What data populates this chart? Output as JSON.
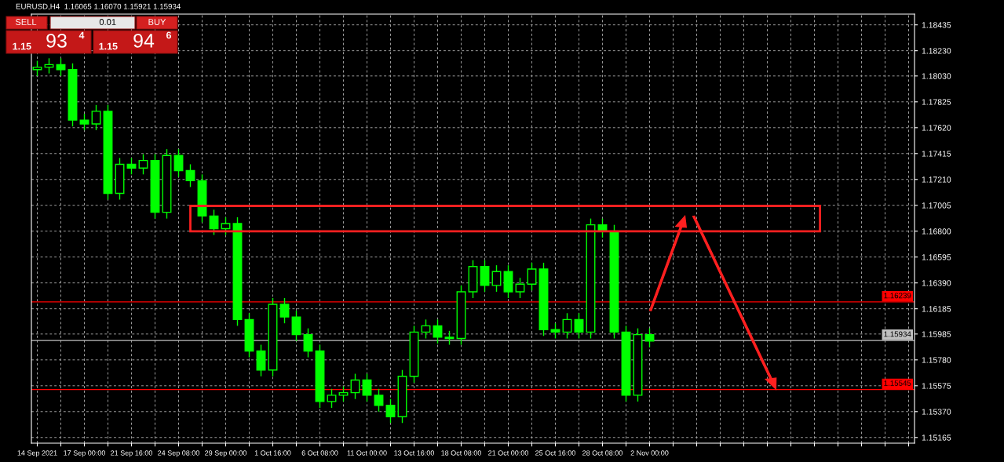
{
  "chart_data": {
    "type": "candlestick",
    "title": "EURUSD,H4  1.16065 1.16070 1.15921 1.15934",
    "color": "#00ff00",
    "categories": [
      "14 Sep 2021",
      null,
      null,
      null,
      "17 Sep 00:00",
      null,
      null,
      null,
      "21 Sep 16:00",
      null,
      null,
      null,
      "24 Sep 08:00",
      null,
      null,
      null,
      "29 Sep 00:00",
      null,
      null,
      null,
      "1 Oct 16:00",
      null,
      null,
      null,
      "6 Oct 08:00",
      null,
      null,
      null,
      "11 Oct 00:00",
      null,
      null,
      null,
      "13 Oct 16:00",
      null,
      null,
      null,
      "18 Oct 08:00",
      null,
      null,
      null,
      "21 Oct 00:00",
      null,
      null,
      null,
      "25 Oct 16:00",
      null,
      null,
      null,
      "28 Oct 08:00",
      null,
      null,
      null,
      "2 Nov 00:00",
      null,
      null,
      null,
      null,
      null,
      null,
      null,
      null,
      null,
      null,
      null,
      null,
      null,
      null,
      null,
      null,
      null,
      null,
      null,
      null,
      null,
      null
    ],
    "ohlc": [
      [
        1.1808,
        1.1815,
        1.1803,
        1.181
      ],
      [
        1.181,
        1.1817,
        1.1805,
        1.1812
      ],
      [
        1.1812,
        1.1817,
        1.1803,
        1.1808
      ],
      [
        1.1808,
        1.1813,
        1.1763,
        1.1768
      ],
      [
        1.1768,
        1.1773,
        1.176,
        1.1765
      ],
      [
        1.1765,
        1.178,
        1.176,
        1.1775
      ],
      [
        1.1775,
        1.178,
        1.1705,
        1.171
      ],
      [
        1.171,
        1.1738,
        1.1705,
        1.1733
      ],
      [
        1.1733,
        1.1738,
        1.1725,
        1.173
      ],
      [
        1.173,
        1.1741,
        1.1725,
        1.1736
      ],
      [
        1.1736,
        1.1741,
        1.169,
        1.1695
      ],
      [
        1.1695,
        1.1745,
        1.169,
        1.174
      ],
      [
        1.174,
        1.1745,
        1.1723,
        1.1728
      ],
      [
        1.1728,
        1.1733,
        1.1715,
        1.172
      ],
      [
        1.172,
        1.1725,
        1.1687,
        1.1692
      ],
      [
        1.1692,
        1.1697,
        1.1677,
        1.1682
      ],
      [
        1.1682,
        1.1691,
        1.1677,
        1.1686
      ],
      [
        1.1686,
        1.1691,
        1.1605,
        1.161
      ],
      [
        1.161,
        1.1615,
        1.158,
        1.1585
      ],
      [
        1.1585,
        1.159,
        1.1565,
        1.157
      ],
      [
        1.157,
        1.1627,
        1.1565,
        1.1622
      ],
      [
        1.1622,
        1.1627,
        1.1607,
        1.1612
      ],
      [
        1.1612,
        1.1617,
        1.1593,
        1.1598
      ],
      [
        1.1598,
        1.1603,
        1.158,
        1.1585
      ],
      [
        1.1585,
        1.159,
        1.154,
        1.1545
      ],
      [
        1.1545,
        1.1555,
        1.154,
        1.155
      ],
      [
        1.155,
        1.1557,
        1.1545,
        1.1552
      ],
      [
        1.1552,
        1.1567,
        1.1547,
        1.1562
      ],
      [
        1.1562,
        1.1567,
        1.1545,
        1.155
      ],
      [
        1.155,
        1.1555,
        1.1537,
        1.1542
      ],
      [
        1.1542,
        1.1547,
        1.1528,
        1.1533
      ],
      [
        1.1533,
        1.157,
        1.1528,
        1.1565
      ],
      [
        1.1565,
        1.1605,
        1.156,
        1.16
      ],
      [
        1.16,
        1.161,
        1.1595,
        1.1605
      ],
      [
        1.1605,
        1.161,
        1.1591,
        1.1596
      ],
      [
        1.1596,
        1.1601,
        1.159,
        1.1595
      ],
      [
        1.1595,
        1.1637,
        1.159,
        1.1632
      ],
      [
        1.1632,
        1.1657,
        1.1627,
        1.1652
      ],
      [
        1.1652,
        1.1657,
        1.1632,
        1.1637
      ],
      [
        1.1637,
        1.1653,
        1.1632,
        1.1648
      ],
      [
        1.1648,
        1.1653,
        1.1627,
        1.1632
      ],
      [
        1.1632,
        1.1643,
        1.1627,
        1.1638
      ],
      [
        1.1638,
        1.1655,
        1.1633,
        1.165
      ],
      [
        1.165,
        1.1655,
        1.1597,
        1.1602
      ],
      [
        1.1602,
        1.1607,
        1.1595,
        1.16
      ],
      [
        1.16,
        1.1615,
        1.1595,
        1.161
      ],
      [
        1.161,
        1.1615,
        1.1595,
        1.16
      ],
      [
        1.16,
        1.169,
        1.1595,
        1.1685
      ],
      [
        1.1685,
        1.169,
        1.1675,
        1.168
      ],
      [
        1.168,
        1.1685,
        1.1595,
        1.16
      ],
      [
        1.16,
        1.1605,
        1.1545,
        1.155
      ],
      [
        1.155,
        1.1603,
        1.1545,
        1.1598
      ],
      [
        1.1598,
        1.1603,
        1.1588,
        1.1593
      ],
      null,
      null,
      null,
      null,
      null,
      null,
      null,
      null,
      null,
      null,
      null,
      null,
      null,
      null,
      null,
      null,
      null,
      null,
      null,
      null,
      null,
      null
    ],
    "ylim": [
      1.1512,
      1.1852
    ],
    "yticks": [
      {
        "value": 1.15165,
        "label": "1.15165"
      },
      {
        "value": 1.1537,
        "label": "1.15370"
      },
      {
        "value": 1.15575,
        "label": "1.15575"
      },
      {
        "value": 1.1578,
        "label": "1.15780"
      },
      {
        "value": 1.15985,
        "label": "1.15985"
      },
      {
        "value": 1.16185,
        "label": "1.16185"
      },
      {
        "value": 1.1639,
        "label": "1.16390"
      },
      {
        "value": 1.16595,
        "label": "1.16595"
      },
      {
        "value": 1.168,
        "label": "1.16800"
      },
      {
        "value": 1.17005,
        "label": "1.17005"
      },
      {
        "value": 1.1721,
        "label": "1.17210"
      },
      {
        "value": 1.17415,
        "label": "1.17415"
      },
      {
        "value": 1.1762,
        "label": "1.17620"
      },
      {
        "value": 1.17825,
        "label": "1.17825"
      },
      {
        "value": 1.1803,
        "label": "1.18030"
      },
      {
        "value": 1.1823,
        "label": "1.18230"
      },
      {
        "value": 1.18435,
        "label": "1.18435"
      }
    ],
    "ref_lines": [
      {
        "axis": "y",
        "value": 1.16239,
        "label": "1.16239",
        "color": "#ff0000"
      },
      {
        "axis": "y",
        "value": 1.15545,
        "label": "1.15545",
        "color": "#ff0000"
      },
      {
        "axis": "y",
        "value": 1.15934,
        "label": "1.15934",
        "color": "#c0c0c0"
      }
    ],
    "annotations": [
      "SELL",
      "0.01",
      "BUY",
      "1.15",
      "93",
      "4",
      "1.15",
      "94",
      "6"
    ],
    "grid": true,
    "legend": false
  }
}
